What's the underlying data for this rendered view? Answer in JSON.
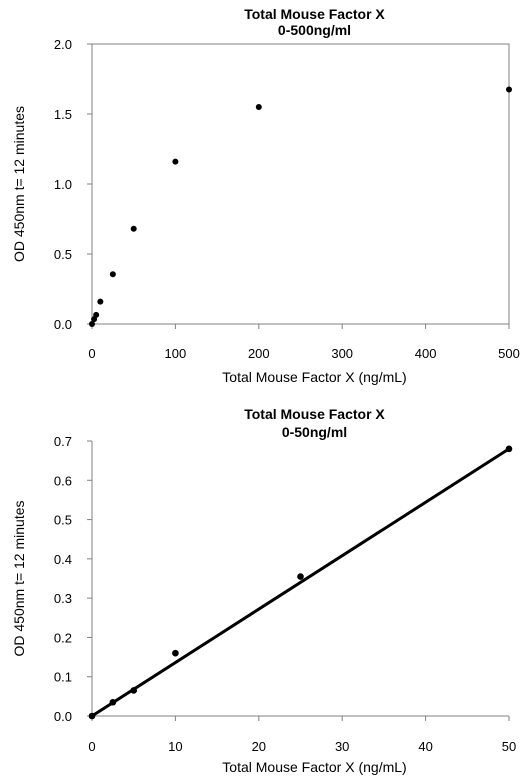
{
  "chart_data": [
    {
      "type": "scatter",
      "title": "Total Mouse Factor X",
      "subtitle": "0-500ng/ml",
      "xlabel": "Total Mouse Factor X (ng/mL)",
      "ylabel": "OD 450nm t= 12 minutes",
      "xlim": [
        0,
        500
      ],
      "ylim": [
        0,
        2.0
      ],
      "xticks": [
        0,
        100,
        200,
        300,
        400,
        500
      ],
      "yticks": [
        0.0,
        0.5,
        1.0,
        1.5,
        2.0
      ],
      "ytick_labels": [
        "0.0",
        "0.5",
        "1.0",
        "1.5",
        "2.0"
      ],
      "grid": false,
      "series": [
        {
          "marker": "circle",
          "color": "#000000",
          "x": [
            0,
            2.5,
            5,
            10,
            25,
            50,
            100,
            200,
            500
          ],
          "y": [
            0.0,
            0.035,
            0.065,
            0.16,
            0.355,
            0.68,
            1.16,
            1.55,
            1.675
          ]
        }
      ]
    },
    {
      "type": "scatter",
      "title": "Total Mouse Factor X",
      "subtitle": "0-50ng/ml",
      "xlabel": "Total Mouse Factor X (ng/mL)",
      "ylabel": "OD 450nm t= 12 minutes",
      "xlim": [
        0,
        50
      ],
      "ylim": [
        0,
        0.7
      ],
      "xticks": [
        0,
        10,
        20,
        30,
        40,
        50
      ],
      "yticks": [
        0.0,
        0.1,
        0.2,
        0.3,
        0.4,
        0.5,
        0.6,
        0.7
      ],
      "ytick_labels": [
        "0.0",
        "0.1",
        "0.2",
        "0.3",
        "0.4",
        "0.5",
        "0.6",
        "0.7"
      ],
      "grid": false,
      "series": [
        {
          "marker": "circle",
          "color": "#000000",
          "x": [
            0,
            2.5,
            5,
            10,
            25,
            50
          ],
          "y": [
            0.0,
            0.035,
            0.065,
            0.16,
            0.355,
            0.68
          ]
        }
      ],
      "trendline": {
        "type": "linear",
        "x": [
          0,
          50
        ],
        "y": [
          0.0,
          0.68
        ],
        "color": "#000000"
      }
    }
  ]
}
